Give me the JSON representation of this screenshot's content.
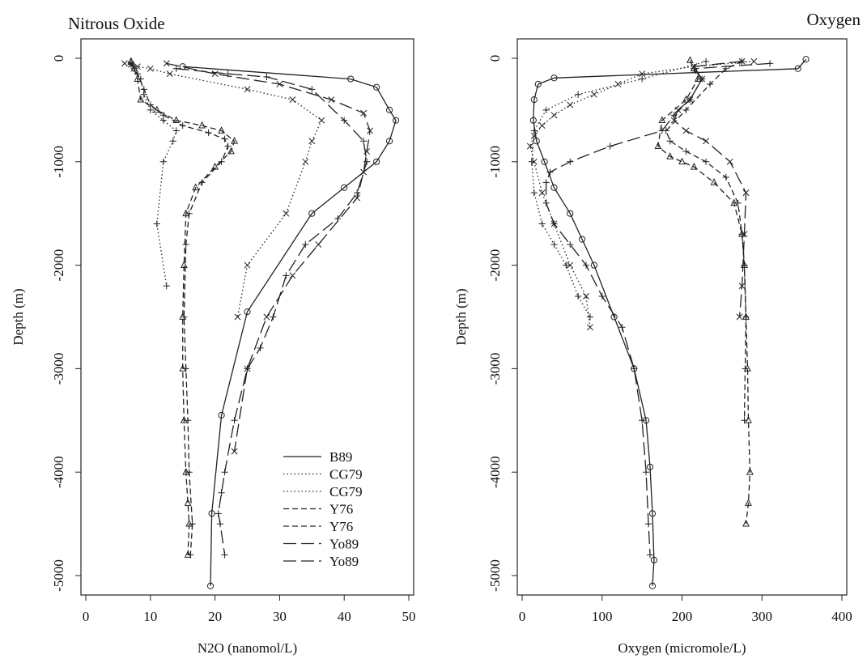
{
  "chart_data": [
    {
      "type": "line",
      "title": "Nitrous Oxide",
      "xlabel": "N2O (nanomol/L)",
      "ylabel": "Depth (m)",
      "xlim": [
        0,
        50
      ],
      "ylim": [
        -5000,
        0
      ],
      "xticks": [
        0,
        10,
        20,
        30,
        40,
        50
      ],
      "yticks": [
        0,
        -1000,
        -2000,
        -3000,
        -4000,
        -5000
      ],
      "grid": false,
      "legend_position": "bottom-right",
      "series": [
        {
          "name": "B89",
          "dash": "solid",
          "marker": "circle",
          "x": [
            15,
            41,
            45,
            47,
            48,
            47,
            45,
            40,
            35,
            25,
            21,
            19.5,
            19.3
          ],
          "y": [
            -80,
            -200,
            -280,
            -500,
            -600,
            -800,
            -1000,
            -1250,
            -1500,
            -2450,
            -3450,
            -4400,
            -5100
          ]
        },
        {
          "name": "CG79",
          "dash": "dotted",
          "marker": "x",
          "x": [
            6,
            7,
            8,
            10,
            13,
            25,
            32,
            36.5,
            35,
            34,
            31,
            25,
            23.5
          ],
          "y": [
            -50,
            -60,
            -80,
            -100,
            -150,
            -300,
            -400,
            -600,
            -800,
            -1000,
            -1500,
            -2000,
            -2500
          ]
        },
        {
          "name": "CG79",
          "dash": "dotted",
          "marker": "plus",
          "x": [
            7,
            7.5,
            8.5,
            9,
            10,
            12,
            14,
            13.5,
            12,
            11,
            12.5
          ],
          "y": [
            -40,
            -100,
            -200,
            -350,
            -500,
            -600,
            -700,
            -800,
            -1000,
            -1600,
            -2200
          ]
        },
        {
          "name": "Y76",
          "dash": "dashed",
          "marker": "triangle",
          "x": [
            7,
            7.5,
            8,
            8.5,
            11,
            14,
            18,
            21,
            23,
            22.5,
            20,
            17,
            15.5,
            15.2,
            15,
            15,
            15.2,
            15.5,
            15.8,
            16,
            15.8
          ],
          "y": [
            -30,
            -100,
            -200,
            -400,
            -500,
            -600,
            -650,
            -700,
            -800,
            -900,
            -1050,
            -1250,
            -1500,
            -2000,
            -2500,
            -3000,
            -3500,
            -4000,
            -4300,
            -4500,
            -4800
          ]
        },
        {
          "name": "Y76",
          "dash": "dashed",
          "marker": "plus",
          "x": [
            7,
            8,
            9,
            10,
            12,
            15,
            19,
            21.5,
            22,
            21,
            18,
            16,
            15.5,
            15.2,
            15.5,
            15.8,
            16,
            16.5,
            16.2
          ],
          "y": [
            -60,
            -150,
            -300,
            -450,
            -550,
            -650,
            -720,
            -780,
            -850,
            -1000,
            -1200,
            -1500,
            -1800,
            -2500,
            -3000,
            -3500,
            -4000,
            -4500,
            -4800
          ]
        },
        {
          "name": "Yo89",
          "dash": "longdash",
          "marker": "x",
          "x": [
            12.5,
            20,
            30,
            38,
            43,
            44,
            43.5,
            43,
            42,
            36,
            32,
            28,
            25,
            23
          ],
          "y": [
            -50,
            -150,
            -250,
            -400,
            -530,
            -700,
            -900,
            -1100,
            -1350,
            -1800,
            -2100,
            -2500,
            -3000,
            -3800
          ]
        },
        {
          "name": "Yo89",
          "dash": "longdash",
          "marker": "plus",
          "x": [
            14,
            22,
            28,
            35,
            40,
            43,
            43.5,
            42,
            39,
            34,
            31,
            29,
            27,
            25,
            23,
            21.5,
            21,
            20.5,
            20.8,
            21.5
          ],
          "y": [
            -100,
            -150,
            -180,
            -300,
            -600,
            -800,
            -1000,
            -1300,
            -1550,
            -1800,
            -2100,
            -2500,
            -2800,
            -3000,
            -3500,
            -4000,
            -4200,
            -4400,
            -4500,
            -4800
          ]
        }
      ]
    },
    {
      "type": "line",
      "title": "Oxygen",
      "xlabel": "Oxygen (micromole/L)",
      "ylabel": "Depth (m)",
      "xlim": [
        0,
        400
      ],
      "ylim": [
        -5000,
        0
      ],
      "xticks": [
        0,
        100,
        200,
        300,
        400
      ],
      "yticks": [
        0,
        -1000,
        -2000,
        -3000,
        -4000,
        -5000
      ],
      "grid": false,
      "legend_position": "none",
      "series": [
        {
          "name": "B89",
          "dash": "solid",
          "marker": "circle",
          "x": [
            355,
            345,
            40,
            20,
            15,
            14,
            18,
            28,
            40,
            60,
            75,
            90,
            115,
            140,
            155,
            160,
            163,
            165,
            163
          ],
          "y": [
            -10,
            -100,
            -190,
            -250,
            -400,
            -600,
            -800,
            -1000,
            -1250,
            -1500,
            -1750,
            -2000,
            -2500,
            -3000,
            -3500,
            -3950,
            -4400,
            -4850,
            -5100
          ]
        },
        {
          "name": "CG79",
          "dash": "dotted",
          "marker": "x",
          "x": [
            290,
            215,
            150,
            120,
            90,
            60,
            40,
            25,
            15,
            10,
            15,
            25,
            40,
            60,
            80,
            85
          ],
          "y": [
            -30,
            -80,
            -150,
            -250,
            -350,
            -450,
            -550,
            -650,
            -750,
            -850,
            -1000,
            -1300,
            -1600,
            -2000,
            -2300,
            -2600
          ]
        },
        {
          "name": "CG79",
          "dash": "dotted",
          "marker": "plus",
          "x": [
            230,
            150,
            70,
            30,
            15,
            12,
            15,
            25,
            40,
            55,
            70,
            85
          ],
          "y": [
            -30,
            -200,
            -350,
            -500,
            -700,
            -1000,
            -1300,
            -1600,
            -1800,
            -2000,
            -2300,
            -2500
          ]
        },
        {
          "name": "Y76",
          "dash": "dashed",
          "marker": "triangle",
          "x": [
            210,
            215,
            220,
            205,
            175,
            170,
            185,
            200,
            215,
            240,
            265,
            275,
            278,
            280,
            282,
            283,
            285,
            283,
            280
          ],
          "y": [
            -20,
            -100,
            -200,
            -400,
            -600,
            -850,
            -950,
            -1000,
            -1050,
            -1200,
            -1400,
            -1700,
            -2000,
            -2500,
            -3000,
            -3500,
            -4000,
            -4300,
            -4500
          ]
        },
        {
          "name": "Y76",
          "dash": "dashed",
          "marker": "plus",
          "x": [
            275,
            255,
            235,
            205,
            180,
            185,
            205,
            230,
            255,
            270,
            275,
            278,
            280,
            279,
            278
          ],
          "y": [
            -30,
            -100,
            -250,
            -500,
            -700,
            -800,
            -900,
            -1000,
            -1150,
            -1400,
            -1700,
            -2000,
            -2500,
            -3000,
            -3500
          ]
        },
        {
          "name": "Yo89",
          "dash": "longdash",
          "marker": "x",
          "x": [
            275,
            215,
            225,
            210,
            195,
            190,
            205,
            230,
            260,
            280,
            278,
            275,
            272
          ],
          "y": [
            -30,
            -80,
            -200,
            -400,
            -500,
            -600,
            -700,
            -800,
            -1000,
            -1300,
            -1700,
            -2200,
            -2500
          ]
        },
        {
          "name": "Yo89",
          "dash": "longdash",
          "marker": "plus",
          "x": [
            310,
            215,
            225,
            210,
            190,
            175,
            110,
            60,
            35,
            30,
            30,
            40,
            60,
            80,
            100,
            125,
            140,
            150,
            155,
            158,
            160
          ],
          "y": [
            -50,
            -100,
            -200,
            -400,
            -550,
            -700,
            -850,
            -1000,
            -1100,
            -1200,
            -1400,
            -1600,
            -1800,
            -2000,
            -2300,
            -2600,
            -3000,
            -3500,
            -4000,
            -4500,
            -4800
          ]
        }
      ]
    }
  ]
}
